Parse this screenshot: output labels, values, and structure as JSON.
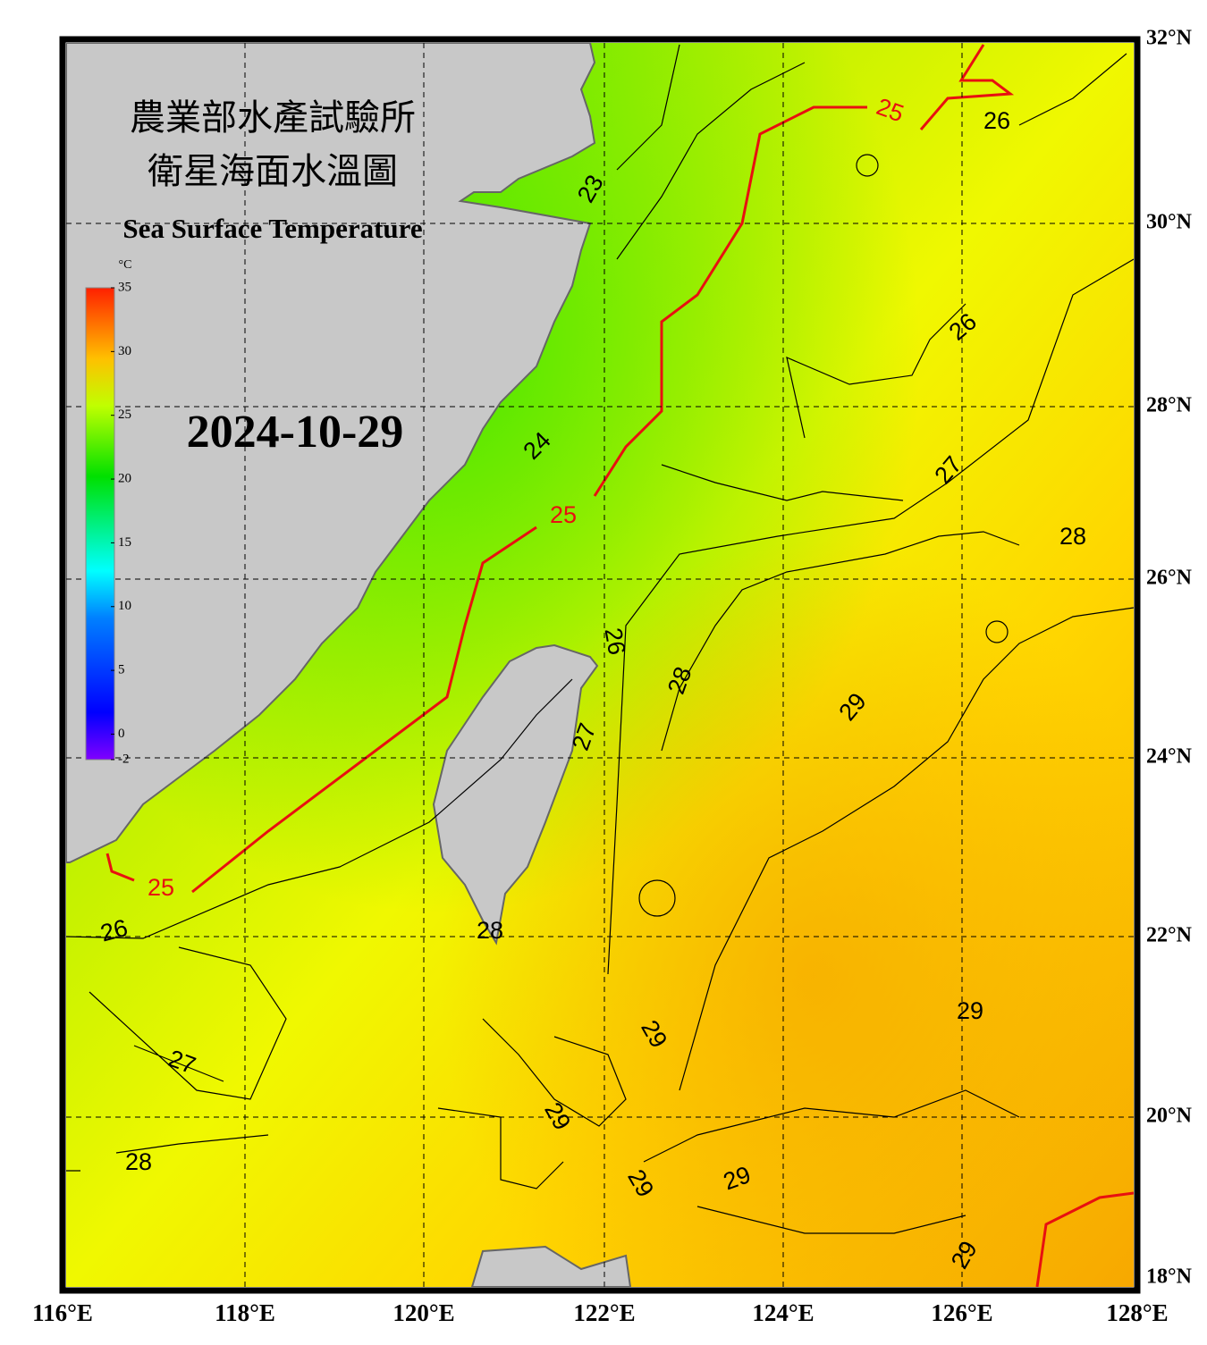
{
  "header": {
    "title_zh_1": "農業部水產試驗所",
    "title_zh_2": "衛星海面水溫圖",
    "title_en": "Sea Surface Temperature",
    "date": "2024-10-29"
  },
  "colorbar": {
    "unit": "°C",
    "range": [
      -2,
      35
    ],
    "ticks": [
      -2,
      0,
      5,
      10,
      15,
      20,
      25,
      30,
      35
    ]
  },
  "map": {
    "lon_labels": [
      "116°E",
      "118°E",
      "120°E",
      "122°E",
      "124°E",
      "126°E",
      "128°E"
    ],
    "lat_labels": [
      "32°N",
      "30°N",
      "28°N",
      "26°N",
      "24°N",
      "22°N",
      "20°N",
      "18°N"
    ],
    "contour_labels": [
      "25",
      "25",
      "25",
      "23",
      "24",
      "26",
      "26",
      "26",
      "26",
      "27",
      "27",
      "28",
      "28",
      "28",
      "29",
      "29",
      "29",
      "29",
      "29",
      "29",
      "29",
      "27",
      "28"
    ]
  }
}
